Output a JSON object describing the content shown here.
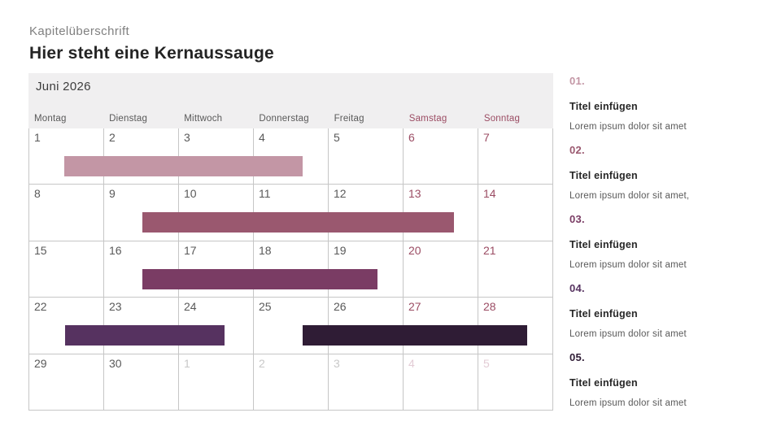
{
  "header": {
    "kicker": "Kapitelüberschrift",
    "title": "Hier steht eine Kernaussauge"
  },
  "calendar": {
    "month_label": "Juni 2026",
    "weekdays": [
      {
        "label": "Montag",
        "weekend": false
      },
      {
        "label": "Dienstag",
        "weekend": false
      },
      {
        "label": "Mittwoch",
        "weekend": false
      },
      {
        "label": "Donnerstag",
        "weekend": false
      },
      {
        "label": "Freitag",
        "weekend": false
      },
      {
        "label": "Samstag",
        "weekend": true
      },
      {
        "label": "Sonntag",
        "weekend": true
      }
    ],
    "weeks": [
      [
        {
          "day": "1",
          "type": "normal"
        },
        {
          "day": "2",
          "type": "normal"
        },
        {
          "day": "3",
          "type": "normal"
        },
        {
          "day": "4",
          "type": "normal"
        },
        {
          "day": "5",
          "type": "normal"
        },
        {
          "day": "6",
          "type": "weekend"
        },
        {
          "day": "7",
          "type": "weekend"
        }
      ],
      [
        {
          "day": "8",
          "type": "normal"
        },
        {
          "day": "9",
          "type": "normal"
        },
        {
          "day": "10",
          "type": "normal"
        },
        {
          "day": "11",
          "type": "normal"
        },
        {
          "day": "12",
          "type": "normal"
        },
        {
          "day": "13",
          "type": "weekend"
        },
        {
          "day": "14",
          "type": "weekend"
        }
      ],
      [
        {
          "day": "15",
          "type": "normal"
        },
        {
          "day": "16",
          "type": "normal"
        },
        {
          "day": "17",
          "type": "normal"
        },
        {
          "day": "18",
          "type": "normal"
        },
        {
          "day": "19",
          "type": "normal"
        },
        {
          "day": "20",
          "type": "weekend"
        },
        {
          "day": "21",
          "type": "weekend"
        }
      ],
      [
        {
          "day": "22",
          "type": "normal"
        },
        {
          "day": "23",
          "type": "normal"
        },
        {
          "day": "24",
          "type": "normal"
        },
        {
          "day": "25",
          "type": "normal"
        },
        {
          "day": "26",
          "type": "normal"
        },
        {
          "day": "27",
          "type": "weekend"
        },
        {
          "day": "28",
          "type": "weekend"
        }
      ],
      [
        {
          "day": "29",
          "type": "normal"
        },
        {
          "day": "30",
          "type": "normal"
        },
        {
          "day": "1",
          "type": "muted"
        },
        {
          "day": "2",
          "type": "muted"
        },
        {
          "day": "3",
          "type": "muted"
        },
        {
          "day": "4",
          "type": "muted-weekend"
        },
        {
          "day": "5",
          "type": "muted-weekend"
        }
      ]
    ],
    "bars": [
      {
        "name": "phase-01",
        "row": 0,
        "left_pct": 6.7,
        "width_pct": 45.4,
        "color": "#c396a5"
      },
      {
        "name": "phase-02",
        "row": 1,
        "left_pct": 21.6,
        "width_pct": 59.4,
        "color": "#9a586f"
      },
      {
        "name": "phase-03",
        "row": 2,
        "left_pct": 21.6,
        "width_pct": 44.8,
        "color": "#7a3c64"
      },
      {
        "name": "phase-04",
        "row": 3,
        "left_pct": 6.8,
        "width_pct": 30.5,
        "color": "#563260"
      },
      {
        "name": "phase-05",
        "row": 3,
        "left_pct": 52.1,
        "width_pct": 42.9,
        "color": "#2f1c35"
      }
    ]
  },
  "sidebar": {
    "items": [
      {
        "number": "01.",
        "color": "#c396a5",
        "title": "Titel einfügen",
        "text": "Lorem ipsum dolor sit amet"
      },
      {
        "number": "02.",
        "color": "#9a586f",
        "title": "Titel einfügen",
        "text": "Lorem ipsum dolor sit amet,"
      },
      {
        "number": "03.",
        "color": "#7a3c64",
        "title": "Titel einfügen",
        "text": "Lorem ipsum dolor sit amet"
      },
      {
        "number": "04.",
        "color": "#563260",
        "title": "Titel einfügen",
        "text": "Lorem ipsum dolor sit amet"
      },
      {
        "number": "05.",
        "color": "#2f1c35",
        "title": "Titel einfügen",
        "text": "Lorem ipsum dolor sit amet"
      }
    ]
  },
  "colors": {
    "weekend_text": "#9b4c63",
    "band_background": "#f0eff0",
    "grid_border": "#c6c6c6",
    "muted_day": "#c8c8c8",
    "muted_weekend_day": "#e3ccd5"
  }
}
